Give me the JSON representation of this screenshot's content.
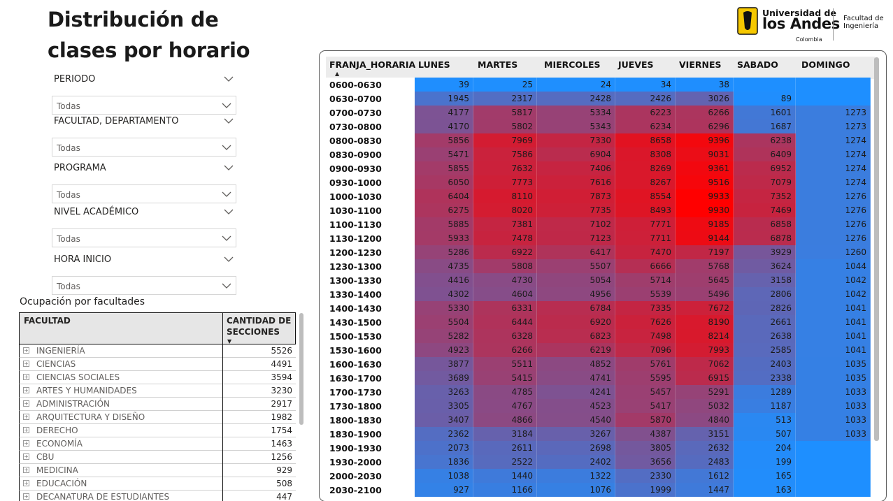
{
  "page": {
    "title_line1": "Distribución de",
    "title_line2": "clases por horario"
  },
  "logo": {
    "line1": "Universidad de",
    "line2": "los Andes",
    "line3": "Colombia",
    "faculty_line1": "Facultad de",
    "faculty_line2": "Ingeniería",
    "brand_color": "#f6c800"
  },
  "slicers": [
    {
      "label": "PERIODO",
      "value": "Todas"
    },
    {
      "label": "FACULTAD, DEPARTAMENTO",
      "value": "Todas"
    },
    {
      "label": "PROGRAMA",
      "value": "Todas"
    },
    {
      "label": "NIVEL ACADÉMICO",
      "value": "Todas"
    },
    {
      "label": "HORA INICIO",
      "value": "Todas"
    }
  ],
  "faculty_table": {
    "title": "Ocupación por facultades",
    "col_faculty": "FACULTAD",
    "col_count": "CANTIDAD DE SECCIONES",
    "rows": [
      {
        "name": "INGENIERÍA",
        "count": "5526"
      },
      {
        "name": "CIENCIAS",
        "count": "4491"
      },
      {
        "name": "CIENCIAS SOCIALES",
        "count": "3594"
      },
      {
        "name": "ARTES Y HUMANIDADES",
        "count": "3230"
      },
      {
        "name": "ADMINISTRACIÓN",
        "count": "2917"
      },
      {
        "name": "ARQUITECTURA Y DISEÑO",
        "count": "1982"
      },
      {
        "name": "DERECHO",
        "count": "1754"
      },
      {
        "name": "ECONOMÍA",
        "count": "1463"
      },
      {
        "name": "CBU",
        "count": "1256"
      },
      {
        "name": "MEDICINA",
        "count": "929"
      },
      {
        "name": "EDUCACIÓN",
        "count": "508"
      },
      {
        "name": "DECANATURA DE ESTUDIANTES",
        "count": "447"
      }
    ]
  },
  "matrix": {
    "row_header": "FRANJA_HORARIA",
    "columns": [
      "LUNES",
      "MARTES",
      "MIERCOLES",
      "JUEVES",
      "VIERNES",
      "SABADO",
      "DOMINGO"
    ],
    "color_low": "#1e8fff",
    "color_high": "#ff0000",
    "rows": [
      {
        "slot": "0600-0630",
        "values": [
          39,
          25,
          24,
          34,
          38,
          null,
          null
        ]
      },
      {
        "slot": "0630-0700",
        "values": [
          1945,
          2317,
          2428,
          2426,
          3026,
          89,
          null
        ]
      },
      {
        "slot": "0700-0730",
        "values": [
          4177,
          5817,
          5334,
          6223,
          6266,
          1601,
          1273
        ]
      },
      {
        "slot": "0730-0800",
        "values": [
          4170,
          5802,
          5343,
          6234,
          6296,
          1687,
          1273
        ]
      },
      {
        "slot": "0800-0830",
        "values": [
          5856,
          7969,
          7330,
          8658,
          9396,
          6238,
          1274
        ]
      },
      {
        "slot": "0830-0900",
        "values": [
          5471,
          7586,
          6904,
          8308,
          9031,
          6409,
          1274
        ]
      },
      {
        "slot": "0900-0930",
        "values": [
          5855,
          7632,
          7406,
          8269,
          9361,
          6952,
          1274
        ]
      },
      {
        "slot": "0930-1000",
        "values": [
          6050,
          7773,
          7616,
          8267,
          9516,
          7079,
          1274
        ]
      },
      {
        "slot": "1000-1030",
        "values": [
          6404,
          8110,
          7873,
          8554,
          9933,
          7352,
          1276
        ]
      },
      {
        "slot": "1030-1100",
        "values": [
          6275,
          8020,
          7735,
          8493,
          9930,
          7469,
          1276
        ]
      },
      {
        "slot": "1100-1130",
        "values": [
          5885,
          7381,
          7102,
          7771,
          9185,
          6858,
          1276
        ]
      },
      {
        "slot": "1130-1200",
        "values": [
          5933,
          7478,
          7123,
          7711,
          9144,
          6878,
          1276
        ]
      },
      {
        "slot": "1200-1230",
        "values": [
          5286,
          6922,
          6417,
          7470,
          7197,
          3929,
          1260
        ]
      },
      {
        "slot": "1230-1300",
        "values": [
          4735,
          5808,
          5507,
          6666,
          5768,
          3624,
          1044
        ]
      },
      {
        "slot": "1300-1330",
        "values": [
          4416,
          4730,
          5054,
          5714,
          5645,
          3158,
          1042
        ]
      },
      {
        "slot": "1330-1400",
        "values": [
          4302,
          4604,
          4956,
          5539,
          5496,
          2806,
          1042
        ]
      },
      {
        "slot": "1400-1430",
        "values": [
          5330,
          6331,
          6784,
          7335,
          7672,
          2826,
          1041
        ]
      },
      {
        "slot": "1430-1500",
        "values": [
          5504,
          6444,
          6920,
          7626,
          8190,
          2661,
          1041
        ]
      },
      {
        "slot": "1500-1530",
        "values": [
          5282,
          6328,
          6823,
          7498,
          8214,
          2638,
          1041
        ]
      },
      {
        "slot": "1530-1600",
        "values": [
          4923,
          6266,
          6219,
          7096,
          7993,
          2585,
          1041
        ]
      },
      {
        "slot": "1600-1630",
        "values": [
          3877,
          5511,
          4852,
          5761,
          7062,
          2403,
          1035
        ]
      },
      {
        "slot": "1630-1700",
        "values": [
          3689,
          5415,
          4741,
          5595,
          6915,
          2338,
          1035
        ]
      },
      {
        "slot": "1700-1730",
        "values": [
          3263,
          4785,
          4241,
          5457,
          5291,
          1289,
          1033
        ]
      },
      {
        "slot": "1730-1800",
        "values": [
          3305,
          4767,
          4523,
          5417,
          5032,
          1187,
          1033
        ]
      },
      {
        "slot": "1800-1830",
        "values": [
          3407,
          4866,
          4540,
          5870,
          4840,
          513,
          1033
        ]
      },
      {
        "slot": "1830-1900",
        "values": [
          2362,
          3184,
          3267,
          4387,
          3151,
          507,
          1033
        ]
      },
      {
        "slot": "1900-1930",
        "values": [
          2073,
          2611,
          2698,
          3805,
          2632,
          204,
          null
        ]
      },
      {
        "slot": "1930-2000",
        "values": [
          1836,
          2522,
          2402,
          3656,
          2483,
          199,
          null
        ]
      },
      {
        "slot": "2000-2030",
        "values": [
          1038,
          1440,
          1322,
          2330,
          1612,
          165,
          null
        ]
      },
      {
        "slot": "2030-2100",
        "values": [
          927,
          1166,
          1076,
          1999,
          1447,
          163,
          null
        ]
      }
    ]
  }
}
